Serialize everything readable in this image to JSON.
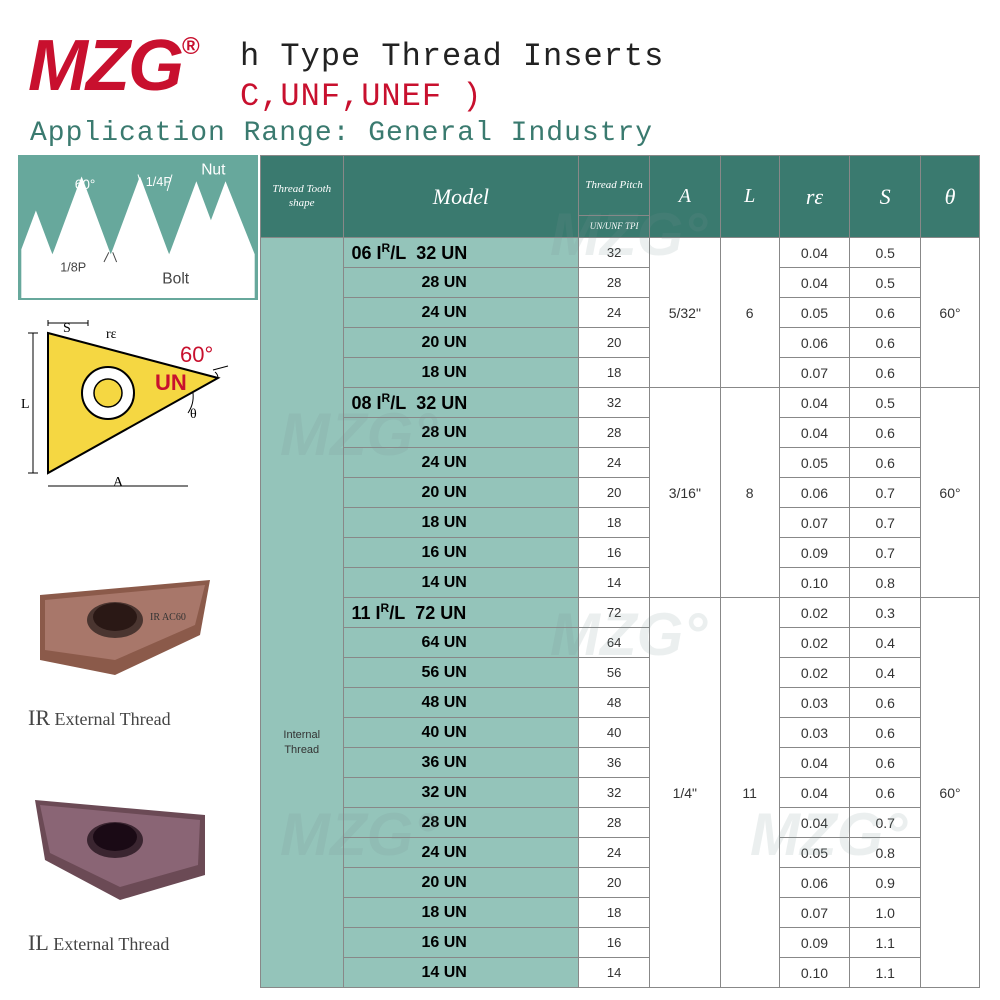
{
  "logo": "MZG",
  "reg_mark": "®",
  "title_line1": "h Type Thread Inserts",
  "title_line2": "C,UNF,UNEF )",
  "title_line3": "Application Range: General Industry",
  "angle_text": "60°",
  "un_text": "UN",
  "photo1_code": "IR",
  "photo1_desc": "External Thread",
  "photo2_code": "IL",
  "photo2_desc": "External Thread",
  "diagram_nut": "Nut",
  "diagram_bolt": "Bolt",
  "diagram_60": "60°",
  "diagram_14p": "1/4P",
  "diagram_18p": "1/8P",
  "tri_s": "S",
  "tri_re": "rε",
  "tri_l": "L",
  "tri_a": "A",
  "tri_theta": "θ",
  "headers": {
    "shape": "Thread Tooth shape",
    "model": "Model",
    "pitch_top": "Thread Pitch",
    "pitch_sub": "UN/UNF TPI",
    "a": "A",
    "l": "L",
    "re": "rε",
    "s": "S",
    "theta": "θ"
  },
  "shape_label": "Internal Thread",
  "groups": [
    {
      "prefix": "06 I",
      "sup": "R",
      "suffix": "/L",
      "a": "5/32\"",
      "l": "6",
      "theta": "60°",
      "rows": [
        {
          "model": "32 UN",
          "pitch": "32",
          "re": "0.04",
          "s": "0.5"
        },
        {
          "model": "28 UN",
          "pitch": "28",
          "re": "0.04",
          "s": "0.5"
        },
        {
          "model": "24 UN",
          "pitch": "24",
          "re": "0.05",
          "s": "0.6"
        },
        {
          "model": "20 UN",
          "pitch": "20",
          "re": "0.06",
          "s": "0.6"
        },
        {
          "model": "18 UN",
          "pitch": "18",
          "re": "0.07",
          "s": "0.6"
        }
      ]
    },
    {
      "prefix": "08 I",
      "sup": "R",
      "suffix": "/L",
      "a": "3/16\"",
      "l": "8",
      "theta": "60°",
      "rows": [
        {
          "model": "32 UN",
          "pitch": "32",
          "re": "0.04",
          "s": "0.5"
        },
        {
          "model": "28 UN",
          "pitch": "28",
          "re": "0.04",
          "s": "0.6"
        },
        {
          "model": "24 UN",
          "pitch": "24",
          "re": "0.05",
          "s": "0.6"
        },
        {
          "model": "20 UN",
          "pitch": "20",
          "re": "0.06",
          "s": "0.7"
        },
        {
          "model": "18 UN",
          "pitch": "18",
          "re": "0.07",
          "s": "0.7"
        },
        {
          "model": "16 UN",
          "pitch": "16",
          "re": "0.09",
          "s": "0.7"
        },
        {
          "model": "14 UN",
          "pitch": "14",
          "re": "0.10",
          "s": "0.8"
        }
      ]
    },
    {
      "prefix": "11 I",
      "sup": "R",
      "suffix": "/L",
      "a": "1/4\"",
      "l": "11",
      "theta": "60°",
      "rows": [
        {
          "model": "72 UN",
          "pitch": "72",
          "re": "0.02",
          "s": "0.3"
        },
        {
          "model": "64 UN",
          "pitch": "64",
          "re": "0.02",
          "s": "0.4"
        },
        {
          "model": "56 UN",
          "pitch": "56",
          "re": "0.02",
          "s": "0.4"
        },
        {
          "model": "48 UN",
          "pitch": "48",
          "re": "0.03",
          "s": "0.6"
        },
        {
          "model": "40 UN",
          "pitch": "40",
          "re": "0.03",
          "s": "0.6"
        },
        {
          "model": "36 UN",
          "pitch": "36",
          "re": "0.04",
          "s": "0.6"
        },
        {
          "model": "32 UN",
          "pitch": "32",
          "re": "0.04",
          "s": "0.6"
        },
        {
          "model": "28 UN",
          "pitch": "28",
          "re": "0.04",
          "s": "0.7"
        },
        {
          "model": "24 UN",
          "pitch": "24",
          "re": "0.05",
          "s": "0.8"
        },
        {
          "model": "20 UN",
          "pitch": "20",
          "re": "0.06",
          "s": "0.9"
        },
        {
          "model": "18 UN",
          "pitch": "18",
          "re": "0.07",
          "s": "1.0"
        },
        {
          "model": "16 UN",
          "pitch": "16",
          "re": "0.09",
          "s": "1.1"
        },
        {
          "model": "14 UN",
          "pitch": "14",
          "re": "0.10",
          "s": "1.1"
        }
      ]
    }
  ],
  "colors": {
    "brand_red": "#c8102e",
    "header_green": "#3a7a6f",
    "cell_green": "#94c4ba",
    "diagram_bg": "#67a89c"
  }
}
